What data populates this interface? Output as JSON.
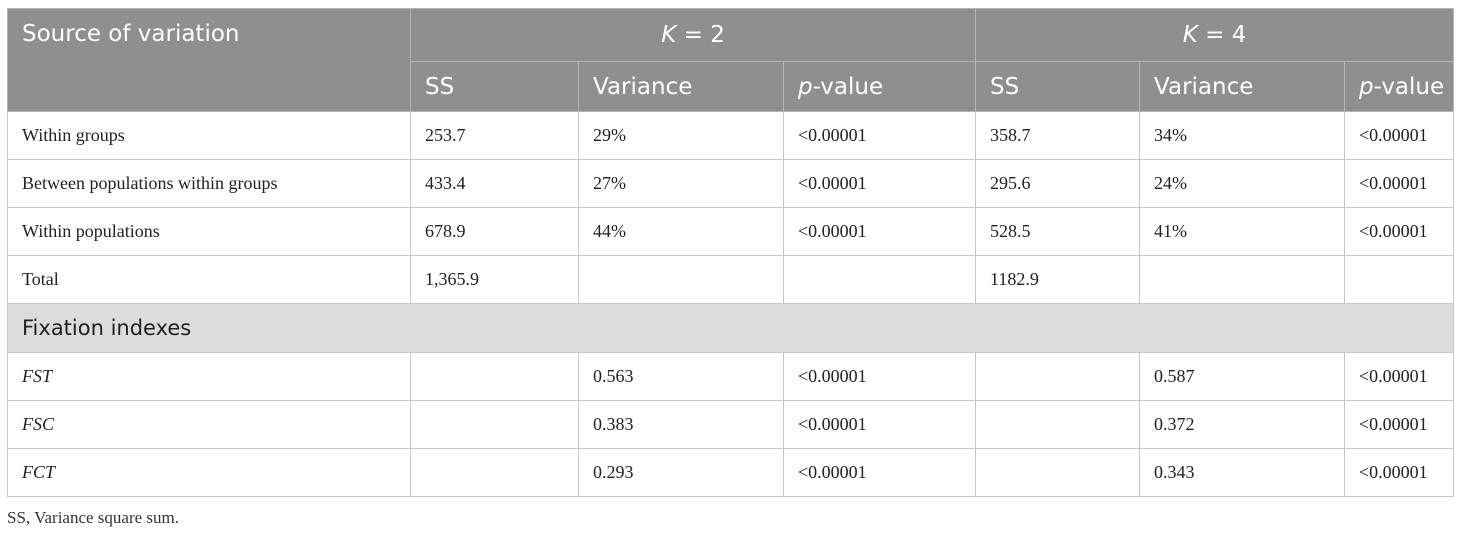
{
  "header": {
    "source_label": "Source of variation",
    "group_k2": {
      "var": "K",
      "rest": " = 2"
    },
    "group_k4": {
      "var": "K",
      "rest": " = 4"
    },
    "col_ss": "SS",
    "col_variance": "Variance",
    "col_p": {
      "var": "p",
      "rest": "-value"
    }
  },
  "rows": [
    {
      "label": "Within groups",
      "k2_ss": "253.7",
      "k2_var": "29%",
      "k2_p": "<0.00001",
      "k4_ss": "358.7",
      "k4_var": "34%",
      "k4_p": "<0.00001"
    },
    {
      "label": "Between populations within groups",
      "k2_ss": "433.4",
      "k2_var": "27%",
      "k2_p": "<0.00001",
      "k4_ss": "295.6",
      "k4_var": "24%",
      "k4_p": "<0.00001"
    },
    {
      "label": "Within populations",
      "k2_ss": "678.9",
      "k2_var": "44%",
      "k2_p": "<0.00001",
      "k4_ss": "528.5",
      "k4_var": "41%",
      "k4_p": "<0.00001"
    },
    {
      "label": "Total",
      "k2_ss": "1,365.9",
      "k2_var": "",
      "k2_p": "",
      "k4_ss": "1182.9",
      "k4_var": "",
      "k4_p": ""
    }
  ],
  "section_label": "Fixation indexes",
  "fixation_rows": [
    {
      "label": "FST",
      "k2_ss": "",
      "k2_var": "0.563",
      "k2_p": "<0.00001",
      "k4_ss": "",
      "k4_var": "0.587",
      "k4_p": "<0.00001"
    },
    {
      "label": "FSC",
      "k2_ss": "",
      "k2_var": "0.383",
      "k2_p": "<0.00001",
      "k4_ss": "",
      "k4_var": "0.372",
      "k4_p": "<0.00001"
    },
    {
      "label": "FCT",
      "k2_ss": "",
      "k2_var": "0.293",
      "k2_p": "<0.00001",
      "k4_ss": "",
      "k4_var": "0.343",
      "k4_p": "<0.00001"
    }
  ],
  "footnote": "SS, Variance square sum."
}
